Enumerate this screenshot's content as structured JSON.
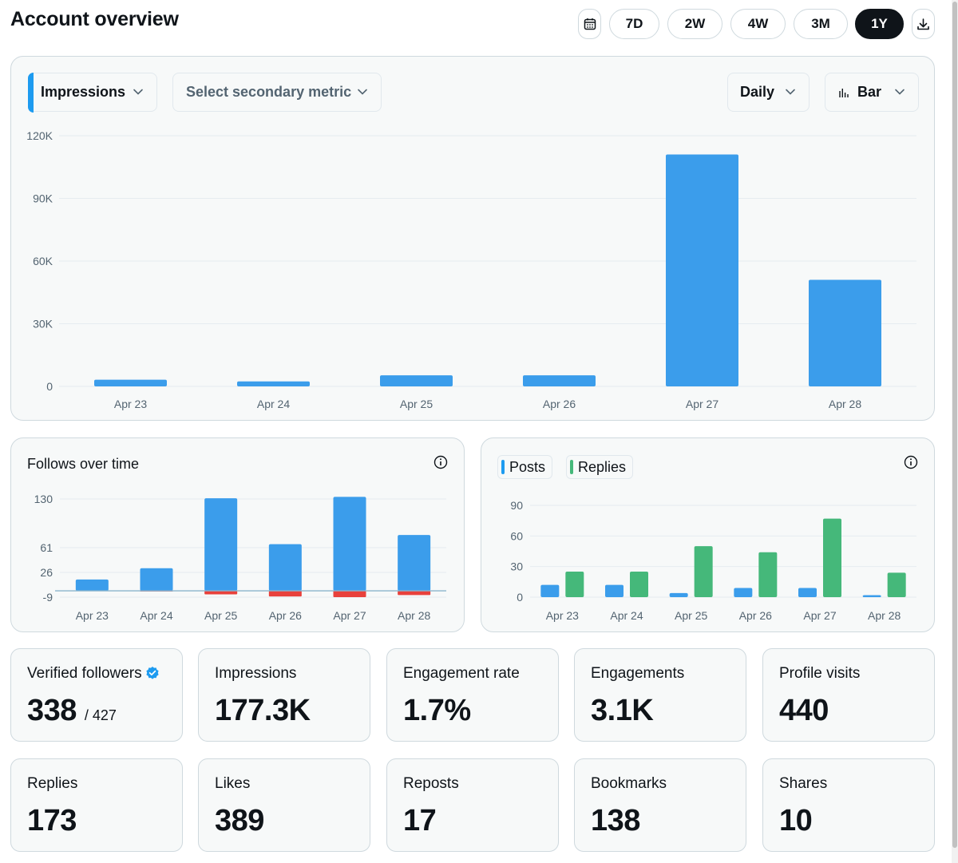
{
  "page": {
    "title": "Account overview"
  },
  "range": {
    "calendar_icon": "calendar-icon",
    "options": [
      "7D",
      "2W",
      "4W",
      "3M",
      "1Y"
    ],
    "selected": "1Y",
    "download_icon": "download-icon"
  },
  "main_chart": {
    "primary_metric": "Impressions",
    "secondary_placeholder": "Select secondary metric",
    "granularity": "Daily",
    "chart_type": "Bar"
  },
  "follows_chart": {
    "title": "Follows over time"
  },
  "posts_chart": {
    "legend_posts": "Posts",
    "legend_replies": "Replies"
  },
  "stats": [
    {
      "label": "Verified followers",
      "value": "338",
      "sub": "/ 427",
      "verified": true
    },
    {
      "label": "Impressions",
      "value": "177.3K"
    },
    {
      "label": "Engagement rate",
      "value": "1.7%"
    },
    {
      "label": "Engagements",
      "value": "3.1K"
    },
    {
      "label": "Profile visits",
      "value": "440"
    },
    {
      "label": "Replies",
      "value": "173"
    },
    {
      "label": "Likes",
      "value": "389"
    },
    {
      "label": "Reposts",
      "value": "17"
    },
    {
      "label": "Bookmarks",
      "value": "138"
    },
    {
      "label": "Shares",
      "value": "10"
    }
  ],
  "colors": {
    "blue": "#3b9deb",
    "green": "#45b87a",
    "red": "#e8413c",
    "grid": "#e6ecf0",
    "axis_text": "#536471"
  },
  "chart_data": [
    {
      "type": "bar",
      "title": "Impressions",
      "categories": [
        "Apr 23",
        "Apr 24",
        "Apr 25",
        "Apr 26",
        "Apr 27",
        "Apr 28"
      ],
      "series": [
        {
          "name": "Impressions",
          "values": [
            3200,
            2400,
            5300,
            5300,
            111000,
            51000
          ]
        }
      ],
      "yticks": [
        "0",
        "30K",
        "60K",
        "90K",
        "120K"
      ],
      "ytick_values": [
        0,
        30000,
        60000,
        90000,
        120000
      ],
      "ylim": [
        0,
        120000
      ]
    },
    {
      "type": "bar",
      "title": "Follows over time",
      "categories": [
        "Apr 23",
        "Apr 24",
        "Apr 25",
        "Apr 26",
        "Apr 27",
        "Apr 28"
      ],
      "series": [
        {
          "name": "Follows",
          "values": [
            16,
            32,
            131,
            66,
            133,
            79
          ]
        },
        {
          "name": "Unfollows",
          "values": [
            0,
            -1,
            -5,
            -8,
            -9,
            -6
          ]
        }
      ],
      "yticks": [
        "-9",
        "26",
        "61",
        "130"
      ],
      "ytick_values": [
        -9,
        26,
        61,
        130
      ],
      "ylim": [
        -9,
        130
      ]
    },
    {
      "type": "bar",
      "title": "Posts and Replies",
      "categories": [
        "Apr 23",
        "Apr 24",
        "Apr 25",
        "Apr 26",
        "Apr 27",
        "Apr 28"
      ],
      "series": [
        {
          "name": "Posts",
          "values": [
            12,
            12,
            4,
            9,
            9,
            2
          ]
        },
        {
          "name": "Replies",
          "values": [
            25,
            25,
            50,
            44,
            77,
            24
          ]
        }
      ],
      "yticks": [
        "0",
        "30",
        "60",
        "90"
      ],
      "ytick_values": [
        0,
        30,
        60,
        90
      ],
      "ylim": [
        0,
        90
      ]
    }
  ]
}
